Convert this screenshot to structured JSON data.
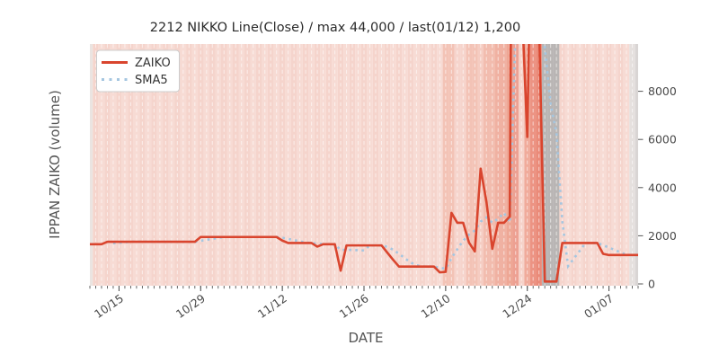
{
  "chart": {
    "title": "2212 NIKKO Line(Close) / max 44,000 / last(01/12) 1,200",
    "xlabel": "DATE",
    "ylabel": "IPPAN ZAIKO (volume)",
    "legend": [
      {
        "label": "ZAIKO",
        "style": "solid"
      },
      {
        "label": "SMA5",
        "style": "dotted"
      }
    ]
  },
  "colors": {
    "zaiko_line": "#d9452e",
    "sma5_line": "#a5c6e0",
    "figure_bg": "#ffffff",
    "plot_bg_base": "#f7dbd4",
    "plot_bg_alt": "#f5d4cc",
    "gray_band": "#b9b5b4",
    "day_gridline": "#ffffff",
    "tick_color": "#555555",
    "legend_border": "#cccccc"
  },
  "chart_data": {
    "type": "line",
    "title": "2212 NIKKO Line(Close) / max 44,000 / last(01/12) 1,200",
    "xlabel": "DATE",
    "ylabel": "IPPAN ZAIKO (volume)",
    "max_value": 44000,
    "last_date": "01/12",
    "last_value": 1200,
    "x_axis": {
      "unit": "calendar day index (day 0 = 10/10, day 94 = 01/12)",
      "n_days": 95,
      "ticks": [
        {
          "day": 5,
          "label": "10/15"
        },
        {
          "day": 19,
          "label": "10/29"
        },
        {
          "day": 33,
          "label": "11/12"
        },
        {
          "day": 47,
          "label": "11/26"
        },
        {
          "day": 61,
          "label": "12/10"
        },
        {
          "day": 75,
          "label": "12/24"
        },
        {
          "day": 89,
          "label": "01/07"
        }
      ]
    },
    "y_axis": {
      "ticks": [
        0,
        2000,
        4000,
        6000,
        8000
      ],
      "ylim": [
        0,
        9960
      ],
      "side": "right"
    },
    "series": [
      {
        "name": "ZAIKO",
        "style": "solid",
        "values": [
          1650,
          1650,
          1650,
          1750,
          1750,
          1750,
          1750,
          1750,
          1750,
          1750,
          1750,
          1750,
          1750,
          1750,
          1750,
          1750,
          1750,
          1750,
          1750,
          1950,
          1950,
          1950,
          1950,
          1950,
          1950,
          1950,
          1950,
          1950,
          1950,
          1950,
          1950,
          1950,
          1950,
          1800,
          1700,
          1700,
          1700,
          1700,
          1700,
          1550,
          1650,
          1650,
          1650,
          550,
          1600,
          1600,
          1600,
          1600,
          1600,
          1600,
          1600,
          1300,
          1000,
          720,
          720,
          720,
          720,
          720,
          720,
          720,
          480,
          500,
          2950,
          2540,
          2540,
          1720,
          1350,
          4790,
          3400,
          1460,
          2540,
          2540,
          2800,
          44000,
          12000,
          6100,
          20000,
          11000,
          100,
          100,
          100,
          1700,
          1700,
          1700,
          1700,
          1700,
          1700,
          1700,
          1250,
          1200,
          1200,
          1200,
          1200,
          1200,
          1200
        ]
      },
      {
        "name": "SMA5",
        "style": "dotted",
        "values": [
          null,
          null,
          null,
          null,
          1690,
          1710,
          1730,
          1750,
          1750,
          1750,
          1750,
          1750,
          1750,
          1750,
          1750,
          1750,
          1750,
          1750,
          1750,
          1790,
          1830,
          1870,
          1910,
          1950,
          1950,
          1950,
          1950,
          1950,
          1950,
          1950,
          1950,
          1950,
          1950,
          1920,
          1870,
          1820,
          1770,
          1720,
          1700,
          1670,
          1660,
          1650,
          1640,
          1410,
          1420,
          1410,
          1400,
          1390,
          1600,
          1600,
          1600,
          1540,
          1420,
          1250,
          1070,
          890,
          780,
          720,
          720,
          720,
          670,
          630,
          1070,
          1440,
          1800,
          2050,
          2220,
          2590,
          2760,
          2540,
          2710,
          2950,
          2550,
          10670,
          12780,
          13490,
          16980,
          18620,
          9840,
          7460,
          6260,
          2600,
          740,
          1060,
          1380,
          1700,
          1700,
          1700,
          1610,
          1510,
          1410,
          1310,
          1210,
          1200,
          1200
        ]
      }
    ],
    "day_shading": {
      "description": "per-day vertical background bands",
      "base": "#f7dbd4",
      "alt": "#f5d4cc",
      "overrides": {
        "0": "#eae4e1",
        "61": "#f3c3b6",
        "62": "#f3c3b6",
        "63": "#f6d4cc",
        "64": "#f6d4cc",
        "65": "#f3c3b6",
        "66": "#f3c3b6",
        "67": "#f5ccc2",
        "68": "#f2bcae",
        "69": "#f2bcae",
        "70": "#f0b1a2",
        "71": "#f0b1a2",
        "72": "#eea795",
        "73": "#eda092",
        "74": "#f6d2c9",
        "75": "#f0ab9b",
        "76": "#ec9383",
        "77": "#ea8a79",
        "78": "#b9b5b4",
        "79": "#b9b5b4",
        "80": "#b9b5b4",
        "93": "#e5e0de",
        "94": "#d9d5d4"
      },
      "gray_days": [
        78,
        79,
        80
      ]
    },
    "grid": {
      "day_gridlines": true,
      "style": "white dashed vertical"
    },
    "legend_position": "upper left"
  }
}
